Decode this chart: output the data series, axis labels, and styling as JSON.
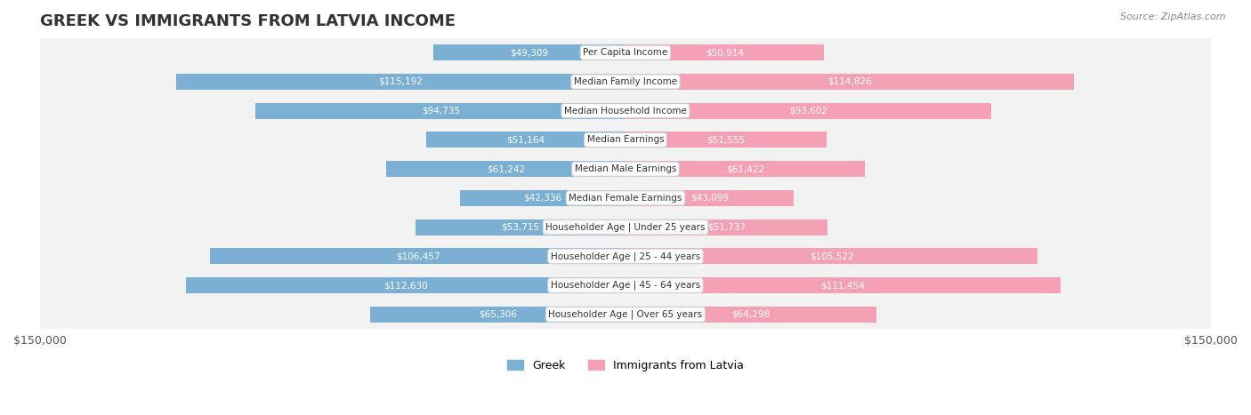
{
  "title": "GREEK VS IMMIGRANTS FROM LATVIA INCOME",
  "source": "Source: ZipAtlas.com",
  "categories": [
    "Per Capita Income",
    "Median Family Income",
    "Median Household Income",
    "Median Earnings",
    "Median Male Earnings",
    "Median Female Earnings",
    "Householder Age | Under 25 years",
    "Householder Age | 25 - 44 years",
    "Householder Age | 45 - 64 years",
    "Householder Age | Over 65 years"
  ],
  "greek_values": [
    49309,
    115192,
    94735,
    51164,
    61242,
    42336,
    53715,
    106457,
    112630,
    65306
  ],
  "latvia_values": [
    50914,
    114826,
    93602,
    51555,
    61422,
    43099,
    51737,
    105522,
    111454,
    64298
  ],
  "greek_labels": [
    "$49,309",
    "$115,192",
    "$94,735",
    "$51,164",
    "$61,242",
    "$42,336",
    "$53,715",
    "$106,457",
    "$112,630",
    "$65,306"
  ],
  "latvia_labels": [
    "$50,914",
    "$114,826",
    "$93,602",
    "$51,555",
    "$61,422",
    "$43,099",
    "$51,737",
    "$105,522",
    "$111,454",
    "$64,298"
  ],
  "greek_color": "#7bafd4",
  "latvia_color": "#f4a0b5",
  "greek_label_color_inside": "#ffffff",
  "greek_label_color_outside": "#555555",
  "latvia_label_color_inside": "#ffffff",
  "latvia_label_color_outside": "#555555",
  "max_value": 150000,
  "bar_height": 0.55,
  "background_color": "#ffffff",
  "row_bg_color": "#f2f2f2",
  "label_name_greek": "Greek",
  "label_name_latvia": "Immigrants from Latvia",
  "inside_threshold": 20000
}
